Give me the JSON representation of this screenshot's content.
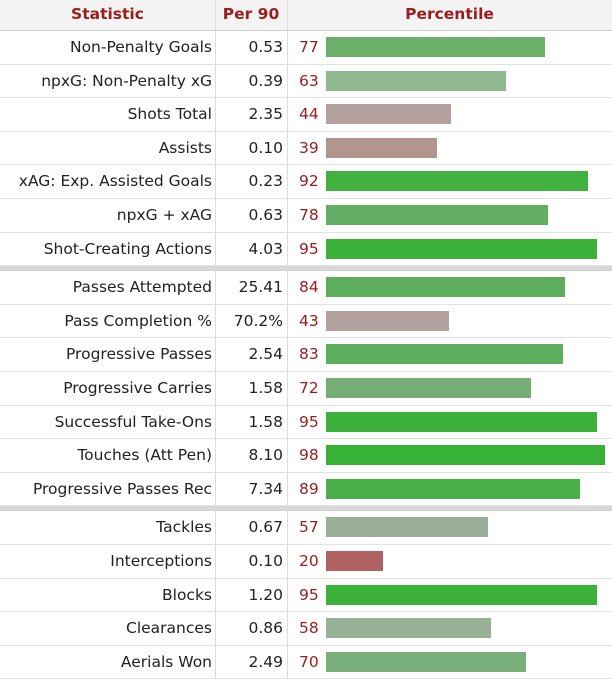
{
  "header": {
    "statistic": "Statistic",
    "per90": "Per 90",
    "percentile": "Percentile"
  },
  "groups": [
    [
      {
        "stat": "Non-Penalty Goals",
        "per90": "0.53",
        "pct": "77",
        "pct_value": 77,
        "color": "#6aaf6a"
      },
      {
        "stat": "npxG: Non-Penalty xG",
        "per90": "0.39",
        "pct": "63",
        "pct_value": 63,
        "color": "#8fb88f"
      },
      {
        "stat": "Shots Total",
        "per90": "2.35",
        "pct": "44",
        "pct_value": 44,
        "color": "#b3a1a0"
      },
      {
        "stat": "Assists",
        "per90": "0.10",
        "pct": "39",
        "pct_value": 39,
        "color": "#b3958f"
      },
      {
        "stat": "xAG: Exp. Assisted Goals",
        "per90": "0.23",
        "pct": "92",
        "pct_value": 92,
        "color": "#41b13f"
      },
      {
        "stat": "npxG + xAG",
        "per90": "0.63",
        "pct": "78",
        "pct_value": 78,
        "color": "#64ae64"
      },
      {
        "stat": "Shot-Creating Actions",
        "per90": "4.03",
        "pct": "95",
        "pct_value": 95,
        "color": "#3db23b"
      }
    ],
    [
      {
        "stat": "Passes Attempted",
        "per90": "25.41",
        "pct": "84",
        "pct_value": 84,
        "color": "#5cae5b"
      },
      {
        "stat": "Pass Completion %",
        "per90": "70.2%",
        "pct": "43",
        "pct_value": 43,
        "color": "#b3a1a0"
      },
      {
        "stat": "Progressive Passes",
        "per90": "2.54",
        "pct": "83",
        "pct_value": 83,
        "color": "#5dae5c"
      },
      {
        "stat": "Progressive Carries",
        "per90": "1.58",
        "pct": "72",
        "pct_value": 72,
        "color": "#75ad75"
      },
      {
        "stat": "Successful Take-Ons",
        "per90": "1.58",
        "pct": "95",
        "pct_value": 95,
        "color": "#3db23b"
      },
      {
        "stat": "Touches (Att Pen)",
        "per90": "8.10",
        "pct": "98",
        "pct_value": 98,
        "color": "#38b236"
      },
      {
        "stat": "Progressive Passes Rec",
        "per90": "7.34",
        "pct": "89",
        "pct_value": 89,
        "color": "#4aaf48"
      }
    ],
    [
      {
        "stat": "Tackles",
        "per90": "0.67",
        "pct": "57",
        "pct_value": 57,
        "color": "#9aaf98"
      },
      {
        "stat": "Interceptions",
        "per90": "0.10",
        "pct": "20",
        "pct_value": 20,
        "color": "#b06262"
      },
      {
        "stat": "Blocks",
        "per90": "1.20",
        "pct": "95",
        "pct_value": 95,
        "color": "#3db23b"
      },
      {
        "stat": "Clearances",
        "per90": "0.86",
        "pct": "58",
        "pct_value": 58,
        "color": "#98b096"
      },
      {
        "stat": "Aerials Won",
        "per90": "2.49",
        "pct": "70",
        "pct_value": 70,
        "color": "#79ae79"
      }
    ]
  ]
}
